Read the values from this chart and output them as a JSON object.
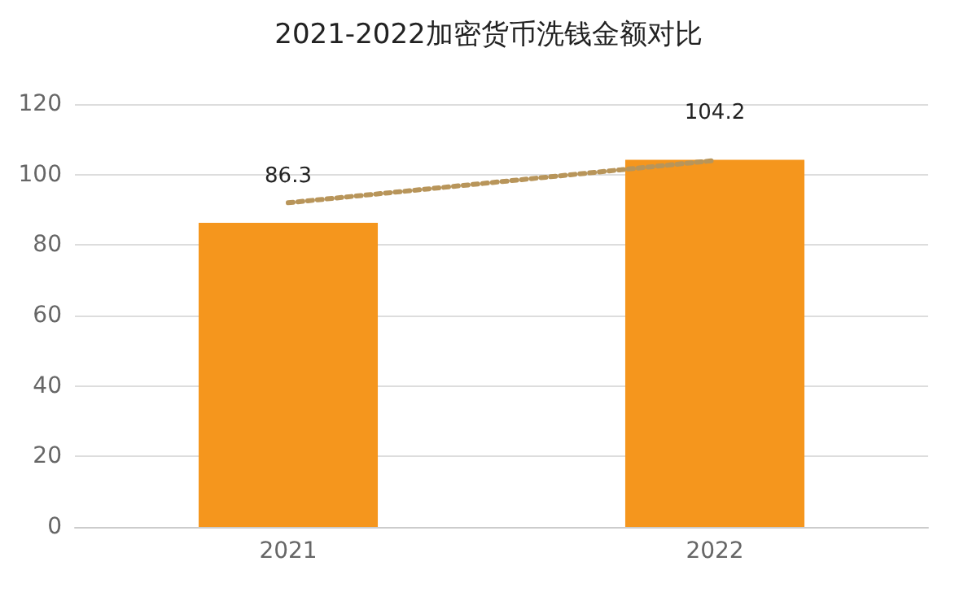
{
  "chart_data": {
    "type": "bar",
    "title": "2021-2022加密货币洗钱金额对比",
    "categories": [
      "2021",
      "2022"
    ],
    "series": [
      {
        "color": "#f5961d",
        "values": [
          86.3,
          104.2
        ],
        "value_labels": [
          "86.3",
          "104.2"
        ]
      },
      {
        "type": "line",
        "color": "#b8955a",
        "values": [
          92,
          104
        ],
        "line_style": "dotted",
        "marker": "none"
      }
    ],
    "ylim": [
      0,
      120
    ],
    "yticks": [
      0,
      20,
      40,
      60,
      80,
      100,
      120
    ],
    "grid": "y"
  }
}
